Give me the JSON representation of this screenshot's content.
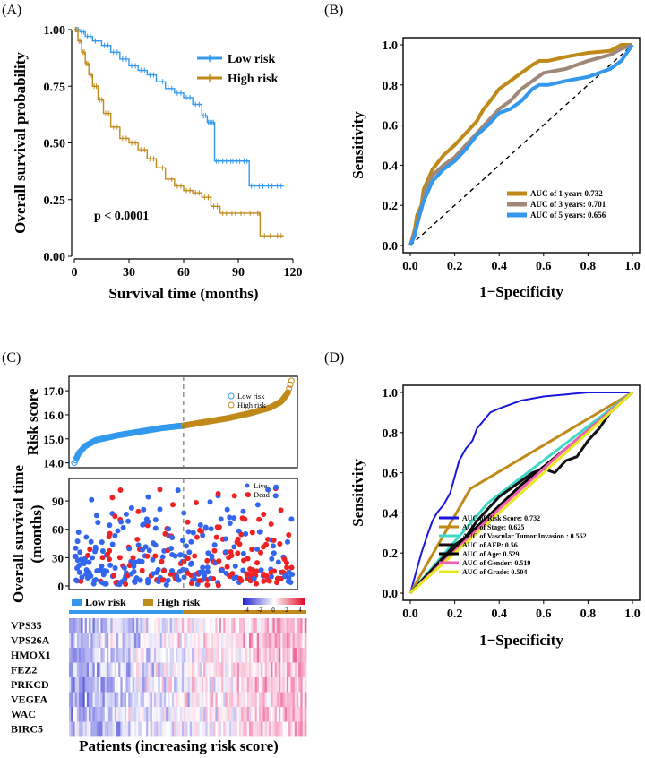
{
  "panels": {
    "A": "(A)",
    "B": "(B)",
    "C": "(C)",
    "D": "(D)"
  },
  "colors": {
    "low": "#3399ee",
    "high": "#c08a1a",
    "live": "#3366ee",
    "dead": "#ee2222",
    "gray": "#a08878",
    "black": "#111111",
    "cyan": "#40d8c8",
    "pink": "#f060b0",
    "yellow": "#e8e820",
    "blue": "#1818dd"
  },
  "chart_data": [
    {
      "id": "A",
      "type": "line",
      "title": "",
      "xlabel": "Survival time (months)",
      "ylabel": "Overall survival probability",
      "xlim": [
        0,
        120
      ],
      "ylim": [
        0,
        1
      ],
      "xticks": [
        "0",
        "30",
        "60",
        "90",
        "120"
      ],
      "yticks": [
        "0.00",
        "0.25",
        "0.50",
        "0.75",
        "1.00"
      ],
      "annotation": "p < 0.0001",
      "legend": [
        "Low risk",
        "High risk"
      ],
      "series": [
        {
          "name": "Low risk",
          "x": [
            0,
            3,
            6,
            10,
            15,
            20,
            25,
            30,
            35,
            40,
            45,
            50,
            55,
            60,
            65,
            70,
            73,
            75,
            77,
            80,
            85,
            88,
            92,
            96,
            100,
            105,
            110,
            115
          ],
          "y": [
            1,
            0.99,
            0.97,
            0.95,
            0.93,
            0.9,
            0.87,
            0.84,
            0.82,
            0.8,
            0.77,
            0.74,
            0.72,
            0.7,
            0.67,
            0.62,
            0.59,
            0.59,
            0.42,
            0.42,
            0.42,
            0.42,
            0.42,
            0.31,
            0.31,
            0.31,
            0.31,
            0.31
          ]
        },
        {
          "name": "High risk",
          "x": [
            0,
            2,
            4,
            6,
            8,
            10,
            13,
            16,
            20,
            25,
            30,
            35,
            40,
            45,
            50,
            55,
            60,
            65,
            70,
            75,
            80,
            85,
            90,
            95,
            100,
            102,
            110,
            115
          ],
          "y": [
            1,
            0.95,
            0.9,
            0.85,
            0.8,
            0.75,
            0.69,
            0.63,
            0.57,
            0.52,
            0.5,
            0.47,
            0.43,
            0.39,
            0.34,
            0.31,
            0.29,
            0.28,
            0.26,
            0.22,
            0.19,
            0.19,
            0.19,
            0.19,
            0.19,
            0.09,
            0.09,
            0.09
          ]
        }
      ]
    },
    {
      "id": "B",
      "type": "line",
      "xlabel": "1−Specificity",
      "ylabel": "Sensitivity",
      "xlim": [
        0,
        1
      ],
      "ylim": [
        0,
        1
      ],
      "xticks": [
        "0.0",
        "0.2",
        "0.4",
        "0.6",
        "0.8",
        "1.0"
      ],
      "yticks": [
        "0.0",
        "0.2",
        "0.4",
        "0.6",
        "0.8",
        "1.0"
      ],
      "legend": [
        "AUC of 1 year: 0.732",
        "AUC of 3 years: 0.701",
        "AUC of 5 years: 0.656"
      ],
      "series": [
        {
          "name": "AUC of 1 year: 0.732",
          "x": [
            0,
            0.02,
            0.03,
            0.05,
            0.06,
            0.08,
            0.1,
            0.15,
            0.2,
            0.25,
            0.3,
            0.33,
            0.36,
            0.4,
            0.45,
            0.5,
            0.55,
            0.58,
            0.62,
            0.7,
            0.8,
            0.9,
            0.95,
            1
          ],
          "y": [
            0,
            0.08,
            0.15,
            0.2,
            0.28,
            0.33,
            0.38,
            0.45,
            0.5,
            0.56,
            0.62,
            0.68,
            0.72,
            0.78,
            0.82,
            0.86,
            0.9,
            0.92,
            0.92,
            0.94,
            0.96,
            0.97,
            1,
            1
          ]
        },
        {
          "name": "AUC of 3 years: 0.701",
          "x": [
            0,
            0.03,
            0.05,
            0.07,
            0.1,
            0.15,
            0.2,
            0.25,
            0.3,
            0.35,
            0.4,
            0.45,
            0.5,
            0.55,
            0.6,
            0.7,
            0.8,
            0.9,
            0.95,
            1
          ],
          "y": [
            0,
            0.1,
            0.18,
            0.28,
            0.35,
            0.4,
            0.44,
            0.5,
            0.56,
            0.62,
            0.68,
            0.72,
            0.78,
            0.82,
            0.86,
            0.88,
            0.92,
            0.95,
            0.98,
            1
          ]
        },
        {
          "name": "AUC of 5 years: 0.656",
          "x": [
            0,
            0.02,
            0.04,
            0.06,
            0.1,
            0.15,
            0.2,
            0.25,
            0.3,
            0.35,
            0.4,
            0.45,
            0.5,
            0.55,
            0.58,
            0.62,
            0.7,
            0.8,
            0.9,
            0.95,
            1
          ],
          "y": [
            0,
            0.05,
            0.15,
            0.22,
            0.32,
            0.38,
            0.42,
            0.48,
            0.55,
            0.6,
            0.66,
            0.68,
            0.72,
            0.78,
            0.8,
            0.8,
            0.82,
            0.84,
            0.88,
            0.92,
            1
          ]
        }
      ]
    },
    {
      "id": "C-top",
      "type": "scatter",
      "ylabel": "Risk score",
      "ylim": [
        13.8,
        17.6
      ],
      "yticks": [
        "14.0",
        "15.0",
        "16.0",
        "17.0"
      ],
      "legend": [
        "Low risk",
        "High risk"
      ],
      "n": 370,
      "cutoff": 185,
      "curve": {
        "quantiles": [
          0,
          0.02,
          0.05,
          0.1,
          0.2,
          0.3,
          0.4,
          0.5,
          0.6,
          0.7,
          0.8,
          0.9,
          0.95,
          0.98,
          1
        ],
        "values": [
          14.0,
          14.4,
          14.7,
          14.95,
          15.15,
          15.3,
          15.45,
          15.55,
          15.7,
          15.85,
          16.05,
          16.3,
          16.55,
          16.9,
          17.5
        ]
      }
    },
    {
      "id": "C-mid",
      "type": "scatter",
      "ylabel": "Overall survival time\n(months)",
      "ylim": [
        0,
        110
      ],
      "yticks": [
        "0",
        "30",
        "60",
        "90"
      ],
      "legend": [
        "Live",
        "Dead"
      ]
    },
    {
      "id": "C-heatmap",
      "type": "heatmap",
      "xlabel": "Patients (increasing risk score)",
      "groups": [
        "Low risk",
        "High risk"
      ],
      "genes": [
        "VPS35",
        "VPS26A",
        "HMOX1",
        "FEZ2",
        "PRKCD",
        "VEGFA",
        "WAC",
        "BIRC5"
      ],
      "scale_ticks": [
        "-4",
        "-2",
        "0",
        "2",
        "4"
      ],
      "range": [
        -4,
        4
      ]
    },
    {
      "id": "D",
      "type": "line",
      "xlabel": "1−Specificity",
      "ylabel": "Sensitivity",
      "xlim": [
        0,
        1
      ],
      "ylim": [
        0,
        1
      ],
      "xticks": [
        "0.0",
        "0.2",
        "0.4",
        "0.6",
        "0.8",
        "1.0"
      ],
      "yticks": [
        "0.0",
        "0.2",
        "0.4",
        "0.6",
        "0.8",
        "1.0"
      ],
      "legend": [
        "AUC of Risk Score: 0.732",
        "AUC of Stage: 0.625",
        "AUC of Vascular Tumor Invasion : 0.562",
        "AUC of AFP: 0.56",
        "AUC of Age: 0.529",
        "AUC of Gender: 0.519",
        "AUC of Grade: 0.504"
      ],
      "series": [
        {
          "name": "AUC of Risk Score: 0.732",
          "x": [
            0,
            0.03,
            0.05,
            0.08,
            0.1,
            0.12,
            0.15,
            0.18,
            0.2,
            0.22,
            0.25,
            0.28,
            0.3,
            0.33,
            0.36,
            0.4,
            0.45,
            0.5,
            0.6,
            0.7,
            0.8,
            0.9,
            1
          ],
          "y": [
            0,
            0.12,
            0.2,
            0.3,
            0.36,
            0.4,
            0.44,
            0.5,
            0.58,
            0.66,
            0.72,
            0.76,
            0.82,
            0.86,
            0.9,
            0.92,
            0.94,
            0.96,
            0.98,
            0.99,
            1,
            1,
            1
          ]
        },
        {
          "name": "AUC of Stage: 0.625",
          "x": [
            0,
            0.27,
            1
          ],
          "y": [
            0,
            0.52,
            1
          ]
        },
        {
          "name": "AUC of Vascular Tumor Invasion : 0.562",
          "x": [
            0,
            0.35,
            1
          ],
          "y": [
            0,
            0.45,
            1
          ]
        },
        {
          "name": "AUC of AFP: 0.56",
          "x": [
            0,
            0.1,
            0.15,
            0.2,
            0.25,
            0.3,
            0.35,
            0.4,
            0.45,
            0.5,
            0.55,
            0.6,
            0.65,
            0.7,
            0.75,
            0.8,
            0.85,
            0.9,
            1
          ],
          "y": [
            0,
            0.12,
            0.18,
            0.24,
            0.28,
            0.36,
            0.42,
            0.48,
            0.52,
            0.56,
            0.6,
            0.62,
            0.6,
            0.66,
            0.68,
            0.76,
            0.82,
            0.9,
            1
          ]
        },
        {
          "name": "AUC of Age: 0.529",
          "x": [
            0,
            0.3,
            0.5,
            0.7,
            0.85,
            1
          ],
          "y": [
            0,
            0.33,
            0.54,
            0.72,
            0.86,
            1
          ]
        },
        {
          "name": "AUC of Gender: 0.519",
          "x": [
            0,
            0.4,
            0.7,
            1
          ],
          "y": [
            0,
            0.42,
            0.72,
            1
          ]
        },
        {
          "name": "AUC of Grade: 0.504",
          "x": [
            0,
            0.5,
            1
          ],
          "y": [
            0,
            0.5,
            1
          ]
        }
      ]
    }
  ]
}
